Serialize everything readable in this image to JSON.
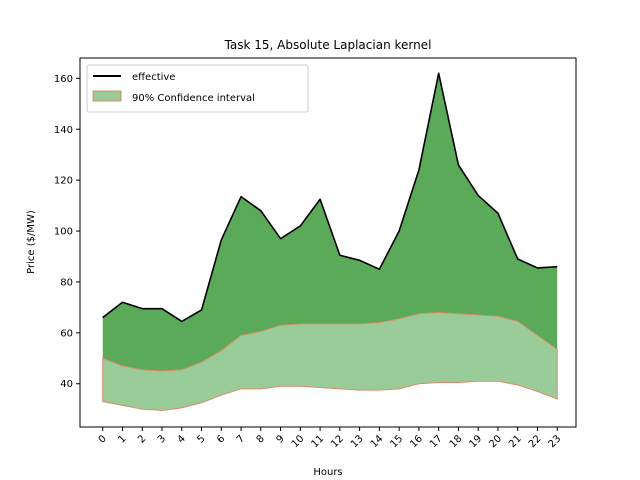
{
  "chart_data": {
    "type": "area",
    "title": "Task 15, Absolute Laplacian kernel",
    "xlabel": "Hours",
    "ylabel": "Price ($/MW)",
    "x": [
      0,
      1,
      2,
      3,
      4,
      5,
      6,
      7,
      8,
      9,
      10,
      11,
      12,
      13,
      14,
      15,
      16,
      17,
      18,
      19,
      20,
      21,
      22,
      23
    ],
    "x_tick_labels": [
      "0",
      "1",
      "2",
      "3",
      "4",
      "5",
      "6",
      "7",
      "8",
      "9",
      "10",
      "11",
      "12",
      "13",
      "14",
      "15",
      "16",
      "17",
      "18",
      "19",
      "20",
      "21",
      "22",
      "23"
    ],
    "ylim": [
      23,
      168
    ],
    "y_ticks": [
      40,
      60,
      80,
      100,
      120,
      140,
      160
    ],
    "y_tick_labels": [
      "40",
      "60",
      "80",
      "100",
      "120",
      "140",
      "160"
    ],
    "legend_position": "top-left",
    "grid": false,
    "series": [
      {
        "name": "effective",
        "kind": "line",
        "color": "#000000",
        "values": [
          66,
          72,
          69.5,
          69.5,
          64.5,
          69,
          96.5,
          113.5,
          108,
          97,
          102,
          112.5,
          90.5,
          88.5,
          85,
          100,
          124,
          162,
          126,
          114,
          107,
          89,
          85.5,
          86
        ]
      },
      {
        "name": "90% Confidence interval",
        "kind": "band",
        "fill_color": "#99cc99",
        "edge_color": "#d98c6c",
        "lower": [
          33,
          31.5,
          30,
          29.5,
          30.5,
          32.5,
          35.5,
          38,
          38,
          39,
          39,
          38.5,
          38,
          37.5,
          37.5,
          38,
          40,
          40.5,
          40.5,
          41,
          41,
          39.5,
          37,
          34
        ],
        "upper": [
          50,
          47,
          45.5,
          45,
          45.5,
          48.5,
          53,
          59,
          60.5,
          63,
          63.5,
          63.5,
          63.5,
          63.5,
          64,
          65.5,
          67.5,
          68,
          67.5,
          67,
          66.5,
          64.5,
          59,
          53.5
        ]
      }
    ],
    "fill_between_color": "#5aaa5a"
  }
}
